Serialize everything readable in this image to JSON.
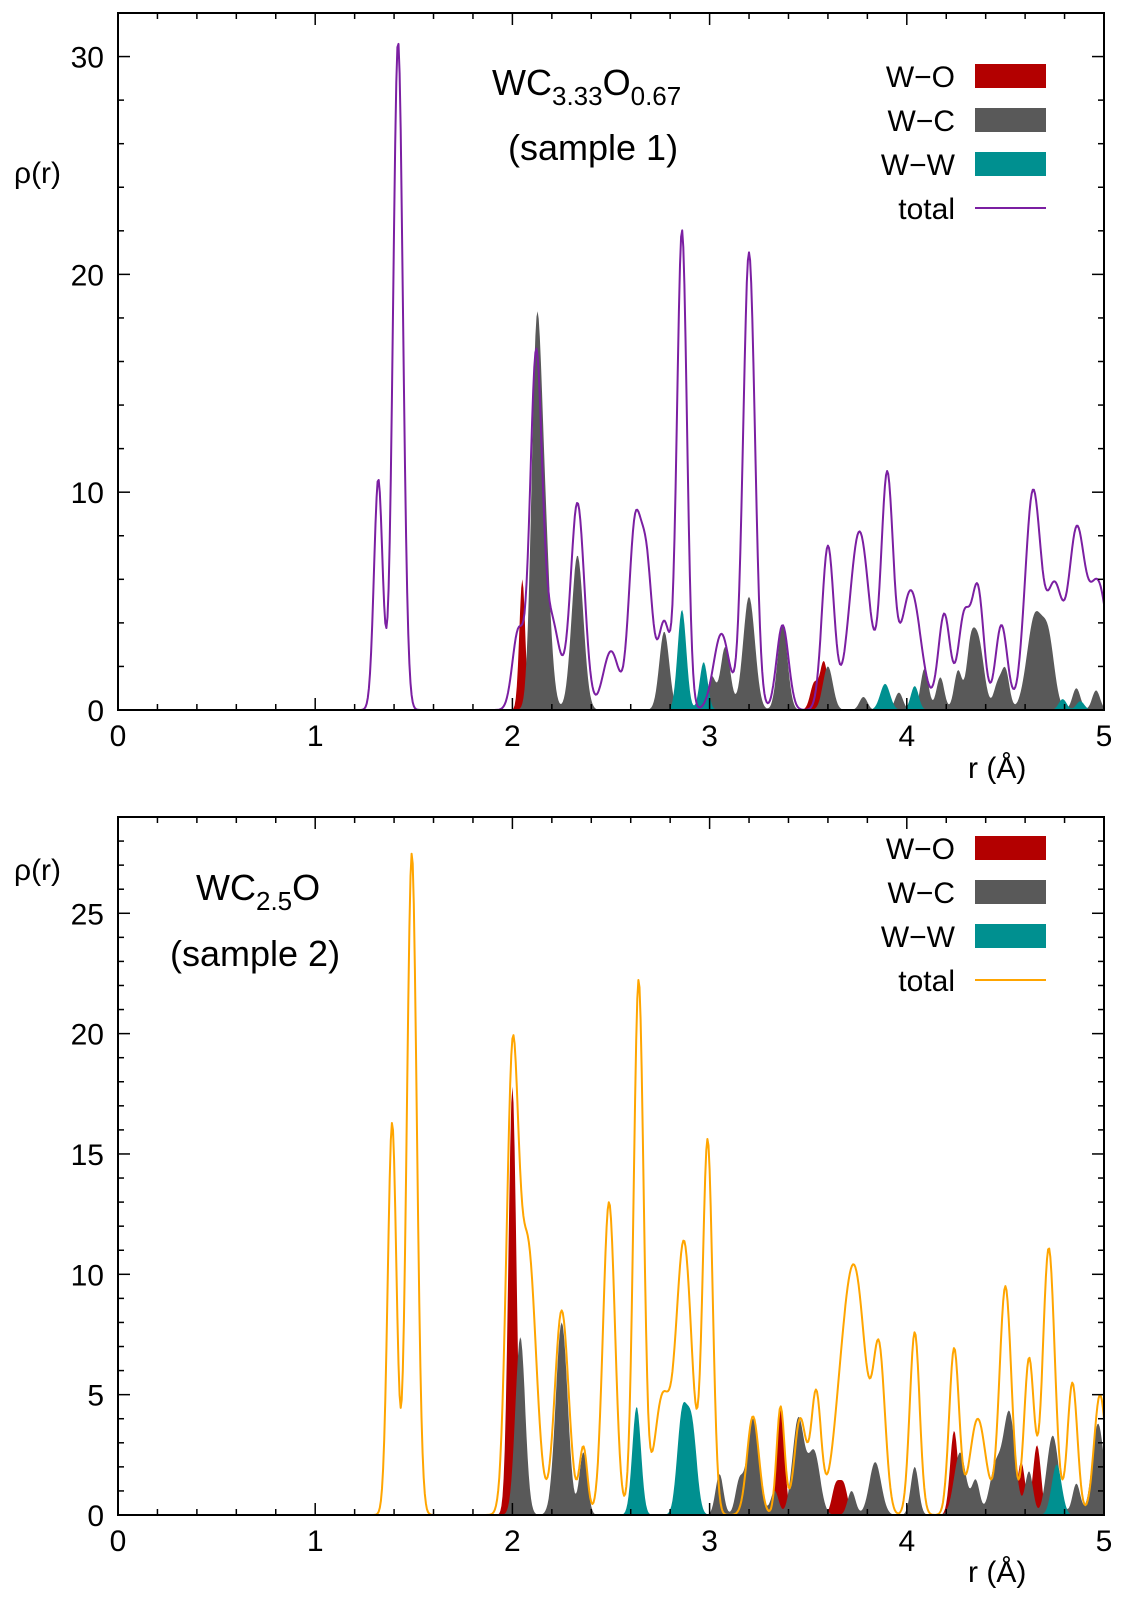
{
  "colors": {
    "W-O": "#b30000",
    "W-C": "#595959",
    "W-W": "#009090",
    "total_top": "#7b1fa2",
    "total_bottom": "#ffa500"
  },
  "chart_data": [
    {
      "type": "area",
      "title_main": "WC",
      "title_sub1": "3.33",
      "title_mid": "O",
      "title_sub2": "0.67",
      "subtitle": "(sample 1)",
      "xlabel": "r (Å)",
      "ylabel": "ρ(r)",
      "xlim": [
        0,
        5
      ],
      "ylim": [
        0,
        32
      ],
      "xticks": [
        0,
        1,
        2,
        3,
        4,
        5
      ],
      "yticks": [
        0,
        10,
        20,
        30
      ],
      "legend": [
        "W−O",
        "W−C",
        "W−W",
        "total"
      ],
      "legend_position": "top-right",
      "series": [
        {
          "name": "W−O",
          "kind": "fill",
          "peaks": [
            [
              2.05,
              6.0,
              0.015
            ],
            [
              3.53,
              1.2,
              0.02
            ],
            [
              3.58,
              2.2,
              0.02
            ]
          ]
        },
        {
          "name": "W−C",
          "kind": "fill",
          "peaks": [
            [
              2.12,
              14.5,
              0.025
            ],
            [
              2.16,
              8.0,
              0.03
            ],
            [
              2.33,
              7.1,
              0.03
            ],
            [
              2.77,
              3.6,
              0.025
            ],
            [
              3.08,
              2.9,
              0.025
            ],
            [
              3.01,
              1.5,
              0.02
            ],
            [
              3.2,
              5.2,
              0.03
            ],
            [
              3.37,
              3.9,
              0.025
            ],
            [
              3.6,
              2.0,
              0.025
            ],
            [
              3.78,
              0.6,
              0.02
            ],
            [
              3.96,
              0.8,
              0.02
            ],
            [
              4.09,
              1.9,
              0.02
            ],
            [
              4.17,
              1.5,
              0.02
            ],
            [
              4.26,
              1.8,
              0.02
            ],
            [
              4.32,
              1.9,
              0.02
            ],
            [
              4.36,
              3.3,
              0.03
            ],
            [
              4.46,
              1.1,
              0.02
            ],
            [
              4.5,
              1.8,
              0.02
            ],
            [
              4.65,
              4.3,
              0.04
            ],
            [
              4.72,
              2.8,
              0.03
            ],
            [
              4.86,
              1.0,
              0.02
            ],
            [
              4.96,
              0.9,
              0.02
            ]
          ]
        },
        {
          "name": "W−W",
          "kind": "fill",
          "peaks": [
            [
              2.86,
              4.6,
              0.022
            ],
            [
              2.97,
              2.2,
              0.02
            ],
            [
              3.89,
              1.2,
              0.025
            ],
            [
              4.04,
              1.1,
              0.02
            ],
            [
              4.79,
              0.5,
              0.02
            ],
            [
              4.88,
              0.4,
              0.02
            ]
          ]
        },
        {
          "name": "total",
          "kind": "line",
          "peaks": [
            [
              1.32,
              10.6,
              0.022
            ],
            [
              1.42,
              30.7,
              0.025
            ],
            [
              2.03,
              3.6,
              0.03
            ],
            [
              2.12,
              16.0,
              0.03
            ],
            [
              2.2,
              4.0,
              0.04
            ],
            [
              2.33,
              9.5,
              0.035
            ],
            [
              2.5,
              2.7,
              0.04
            ],
            [
              2.62,
              8.0,
              0.03
            ],
            [
              2.68,
              6.5,
              0.03
            ],
            [
              2.77,
              4.0,
              0.03
            ],
            [
              2.86,
              22.0,
              0.025
            ],
            [
              3.06,
              3.5,
              0.04
            ],
            [
              3.2,
              21.0,
              0.03
            ],
            [
              3.37,
              3.9,
              0.03
            ],
            [
              3.6,
              7.5,
              0.03
            ],
            [
              3.76,
              8.2,
              0.05
            ],
            [
              3.9,
              10.5,
              0.03
            ],
            [
              4.02,
              5.5,
              0.05
            ],
            [
              4.19,
              4.4,
              0.03
            ],
            [
              4.29,
              4.2,
              0.03
            ],
            [
              4.36,
              5.5,
              0.03
            ],
            [
              4.48,
              3.9,
              0.03
            ],
            [
              4.64,
              10.0,
              0.04
            ],
            [
              4.75,
              5.5,
              0.04
            ],
            [
              4.86,
              7.8,
              0.04
            ],
            [
              4.97,
              5.8,
              0.05
            ]
          ]
        }
      ]
    },
    {
      "type": "area",
      "title_main": "WC",
      "title_sub1": "2.5",
      "title_mid": "O",
      "title_sub2": "",
      "subtitle": "(sample 2)",
      "xlabel": "r (Å)",
      "ylabel": "ρ(r)",
      "xlim": [
        0,
        5
      ],
      "ylim": [
        0,
        29
      ],
      "xticks": [
        0,
        1,
        2,
        3,
        4,
        5
      ],
      "yticks": [
        0,
        5,
        10,
        15,
        20,
        25
      ],
      "legend": [
        "W−O",
        "W−C",
        "W−W",
        "total"
      ],
      "legend_position": "top-right",
      "series": [
        {
          "name": "W−O",
          "kind": "fill",
          "peaks": [
            [
              2.0,
              17.8,
              0.02
            ],
            [
              3.36,
              4.4,
              0.02
            ],
            [
              3.64,
              1.2,
              0.02
            ],
            [
              3.68,
              1.2,
              0.02
            ],
            [
              4.24,
              3.5,
              0.02
            ],
            [
              4.58,
              2.2,
              0.02
            ],
            [
              4.66,
              2.9,
              0.02
            ]
          ]
        },
        {
          "name": "W−C",
          "kind": "fill",
          "peaks": [
            [
              2.04,
              7.4,
              0.025
            ],
            [
              2.25,
              8.0,
              0.03
            ],
            [
              2.36,
              2.6,
              0.02
            ],
            [
              3.05,
              1.7,
              0.02
            ],
            [
              3.15,
              1.3,
              0.02
            ],
            [
              3.22,
              4.0,
              0.03
            ],
            [
              3.33,
              1.0,
              0.02
            ],
            [
              3.45,
              4.0,
              0.03
            ],
            [
              3.53,
              2.6,
              0.03
            ],
            [
              3.72,
              1.0,
              0.02
            ],
            [
              3.84,
              2.2,
              0.03
            ],
            [
              4.04,
              2.0,
              0.02
            ],
            [
              4.27,
              2.6,
              0.03
            ],
            [
              4.35,
              1.4,
              0.02
            ],
            [
              4.45,
              2.0,
              0.03
            ],
            [
              4.52,
              4.2,
              0.03
            ],
            [
              4.62,
              1.8,
              0.02
            ],
            [
              4.74,
              3.3,
              0.03
            ],
            [
              4.86,
              1.3,
              0.02
            ],
            [
              4.97,
              3.8,
              0.03
            ]
          ]
        },
        {
          "name": "W−W",
          "kind": "fill",
          "peaks": [
            [
              2.63,
              4.5,
              0.022
            ],
            [
              2.86,
              4.0,
              0.025
            ],
            [
              2.91,
              3.6,
              0.025
            ],
            [
              4.76,
              2.1,
              0.025
            ]
          ]
        },
        {
          "name": "total",
          "kind": "line",
          "peaks": [
            [
              1.39,
              16.3,
              0.022
            ],
            [
              1.49,
              27.5,
              0.025
            ],
            [
              2.0,
              18.3,
              0.03
            ],
            [
              2.08,
              11.0,
              0.04
            ],
            [
              2.25,
              8.5,
              0.035
            ],
            [
              2.36,
              2.8,
              0.02
            ],
            [
              2.49,
              13.0,
              0.03
            ],
            [
              2.64,
              22.2,
              0.025
            ],
            [
              2.76,
              4.8,
              0.04
            ],
            [
              2.87,
              11.3,
              0.04
            ],
            [
              2.99,
              15.5,
              0.025
            ],
            [
              3.22,
              4.1,
              0.03
            ],
            [
              3.36,
              4.5,
              0.02
            ],
            [
              3.46,
              4.0,
              0.03
            ],
            [
              3.54,
              5.0,
              0.025
            ],
            [
              3.68,
              5.0,
              0.05
            ],
            [
              3.75,
              8.0,
              0.05
            ],
            [
              3.86,
              6.5,
              0.03
            ],
            [
              4.04,
              7.6,
              0.025
            ],
            [
              4.24,
              6.9,
              0.025
            ],
            [
              4.36,
              4.0,
              0.04
            ],
            [
              4.5,
              9.5,
              0.03
            ],
            [
              4.62,
              6.5,
              0.025
            ],
            [
              4.72,
              11.1,
              0.03
            ],
            [
              4.84,
              5.5,
              0.025
            ],
            [
              4.98,
              5.0,
              0.03
            ]
          ]
        }
      ]
    }
  ]
}
